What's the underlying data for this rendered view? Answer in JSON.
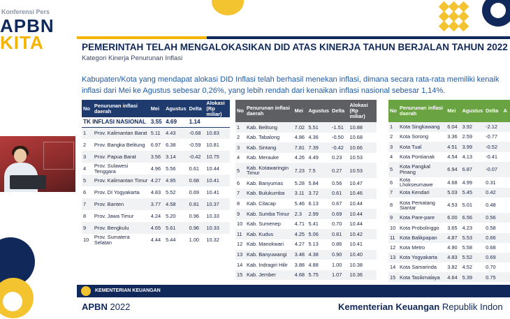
{
  "brand": {
    "conference": "Konferensi Pers",
    "apbn": "APBN",
    "kita": "KITA"
  },
  "slide": {
    "title": "PEMERINTAH TELAH MENGALOKASIKAN DID ATAS KINERJA TAHUN BERJALAN TAHUN 2022",
    "subtitle": "Kategori Kinerja Penurunan Inflasi",
    "intro_line1": "Kabupaten/Kota yang mendapat alokasi DID Inflasi telah berhasil menekan inflasi, dimana secara rata-rata memiliki kenaik",
    "intro_line2": "inflasi dari Mei ke Agustus sebesar 0,26%, yang lebih rendah dari kenaikan inflasi nasional sebesar 1,14%."
  },
  "province_table": {
    "headers": {
      "no": "No",
      "name": "Penurunan inflasi daerah",
      "mei": "Mei",
      "agustus": "Agustus",
      "delta": "Delta",
      "alokasi": "Alokasi (Rp miliar)"
    },
    "national": {
      "label": "TK INFLASI NASIONAL",
      "mei": "3.55",
      "agustus": "4.69",
      "delta": "1.14"
    },
    "rows": [
      {
        "no": "1",
        "name": "Prov. Kalimantan Barat",
        "mei": "5.11",
        "agustus": "4.43",
        "delta": "-0.68",
        "alokasi": "10.83"
      },
      {
        "no": "2",
        "name": "Prov. Bangka Belitung",
        "mei": "6.97",
        "agustus": "6.38",
        "delta": "-0.59",
        "alokasi": "10.81"
      },
      {
        "no": "3",
        "name": "Prov. Papua Barat",
        "mei": "3.56",
        "agustus": "3.14",
        "delta": "-0.42",
        "alokasi": "10.75"
      },
      {
        "no": "4",
        "name": "Prov. Sulawesi Tenggara",
        "mei": "4.96",
        "agustus": "5.56",
        "delta": "0.61",
        "alokasi": "10.44"
      },
      {
        "no": "5",
        "name": "Prov. Kalimantan Timur",
        "mei": "4.27",
        "agustus": "4.95",
        "delta": "0.68",
        "alokasi": "10.41"
      },
      {
        "no": "6",
        "name": "Prov. DI Yogyakarta",
        "mei": "4.83",
        "agustus": "5.52",
        "delta": "0.69",
        "alokasi": "10.41"
      },
      {
        "no": "7",
        "name": "Prov. Banten",
        "mei": "3.77",
        "agustus": "4.58",
        "delta": "0.81",
        "alokasi": "10.37"
      },
      {
        "no": "8",
        "name": "Prov. Jawa Timur",
        "mei": "4.24",
        "agustus": "5.20",
        "delta": "0.96",
        "alokasi": "10.33"
      },
      {
        "no": "9",
        "name": "Prov. Bengkulu",
        "mei": "4.65",
        "agustus": "5.61",
        "delta": "0.96",
        "alokasi": "10.33"
      },
      {
        "no": "10",
        "name": "Prov. Sumatera Selatan",
        "mei": "4.44",
        "agustus": "5.44",
        "delta": "1.00",
        "alokasi": "10.32"
      }
    ]
  },
  "kabupaten_table": {
    "headers": {
      "no": "No",
      "name": "Penurunan inflasi daerah",
      "mei": "Mei",
      "agustus": "Agustus",
      "delta": "Delta",
      "alokasi": "Alokasi (Rp miliar)"
    },
    "rows": [
      {
        "no": "1",
        "name": "Kab. Belitung",
        "mei": "7.02",
        "agustus": "5.51",
        "delta": "-1.51",
        "alokasi": "10.88"
      },
      {
        "no": "2",
        "name": "Kab. Tabalong",
        "mei": "4.86",
        "agustus": "4.36",
        "delta": "-0.50",
        "alokasi": "10.68"
      },
      {
        "no": "3",
        "name": "Kab. Sintang",
        "mei": "7.81",
        "agustus": "7.39",
        "delta": "-0.42",
        "alokasi": "10.66"
      },
      {
        "no": "4",
        "name": "Kab. Merauke",
        "mei": "4.26",
        "agustus": "4.49",
        "delta": "0.23",
        "alokasi": "10.53"
      },
      {
        "no": "5",
        "name": "Kab. Kotawaringin Timur",
        "mei": "7.23",
        "agustus": "7.5",
        "delta": "0.27",
        "alokasi": "10.53"
      },
      {
        "no": "6",
        "name": "Kab. Banyumas",
        "mei": "5.28",
        "agustus": "5.84",
        "delta": "0.56",
        "alokasi": "10.47"
      },
      {
        "no": "7",
        "name": "Kab. Bulukumba",
        "mei": "3.11",
        "agustus": "3.72",
        "delta": "0.61",
        "alokasi": "10.46"
      },
      {
        "no": "8",
        "name": "Kab. Cilacap",
        "mei": "5.46",
        "agustus": "6.13",
        "delta": "0.67",
        "alokasi": "10.44"
      },
      {
        "no": "9",
        "name": "Kab. Sumba Timur",
        "mei": "2.3",
        "agustus": "2.99",
        "delta": "0.69",
        "alokasi": "10.44"
      },
      {
        "no": "10",
        "name": "Kab. Sumenep",
        "mei": "4.71",
        "agustus": "5.41",
        "delta": "0.70",
        "alokasi": "10.44"
      },
      {
        "no": "11",
        "name": "Kab. Kudus",
        "mei": "4.25",
        "agustus": "5.06",
        "delta": "0.81",
        "alokasi": "10.42"
      },
      {
        "no": "12",
        "name": "Kab. Manokwari",
        "mei": "4.27",
        "agustus": "5.13",
        "delta": "0.86",
        "alokasi": "10.41"
      },
      {
        "no": "13",
        "name": "Kab. Banyuwangi",
        "mei": "3.48",
        "agustus": "4.38",
        "delta": "0.90",
        "alokasi": "10.40"
      },
      {
        "no": "14",
        "name": "Kab. Indragiri Hilir",
        "mei": "3.88",
        "agustus": "4.88",
        "delta": "1.00",
        "alokasi": "10.38"
      },
      {
        "no": "15",
        "name": "Kab. Jember",
        "mei": "4.68",
        "agustus": "5.75",
        "delta": "1.07",
        "alokasi": "10.36"
      }
    ]
  },
  "kota_table": {
    "headers": {
      "no": "No",
      "name": "Penurunan inflasi daerah",
      "mei": "Mei",
      "agustus": "Agustus",
      "delta": "Delta",
      "alokasi": "A"
    },
    "rows": [
      {
        "no": "1",
        "name": "Kota Singkawang",
        "mei": "6.04",
        "agustus": "3.92",
        "delta": "-2.12"
      },
      {
        "no": "2",
        "name": "Kota Sorong",
        "mei": "3.36",
        "agustus": "2.59",
        "delta": "-0.77"
      },
      {
        "no": "3",
        "name": "Kota Tual",
        "mei": "4.51",
        "agustus": "3.99",
        "delta": "-0.52"
      },
      {
        "no": "4",
        "name": "Kota Pontianak",
        "mei": "4.54",
        "agustus": "4.13",
        "delta": "-0.41"
      },
      {
        "no": "5",
        "name": "Kota Pangkal Pinang",
        "mei": "6.94",
        "agustus": "6.87",
        "delta": "-0.07"
      },
      {
        "no": "6",
        "name": "Kota Lhokseumawe",
        "mei": "4.68",
        "agustus": "4.99",
        "delta": "0.31"
      },
      {
        "no": "7",
        "name": "Kota Kendari",
        "mei": "5.03",
        "agustus": "5.45",
        "delta": "0.42"
      },
      {
        "no": "8",
        "name": "Kota Pematang Siantar",
        "mei": "4.53",
        "agustus": "5.01",
        "delta": "0.48"
      },
      {
        "no": "9",
        "name": "Kota Pare-pare",
        "mei": "6.00",
        "agustus": "6.56",
        "delta": "0.56"
      },
      {
        "no": "10",
        "name": "Kota Probolinggo",
        "mei": "3.65",
        "agustus": "4.23",
        "delta": "0.58"
      },
      {
        "no": "11",
        "name": "Kota Balikpapan",
        "mei": "4.87",
        "agustus": "5.53",
        "delta": "0.66"
      },
      {
        "no": "12",
        "name": "Kota Metro",
        "mei": "4.90",
        "agustus": "5.58",
        "delta": "0.68"
      },
      {
        "no": "13",
        "name": "Kota Yogyakarta",
        "mei": "4.83",
        "agustus": "5.52",
        "delta": "0.69"
      },
      {
        "no": "14",
        "name": "Kota Samarinda",
        "mei": "3.82",
        "agustus": "4.52",
        "delta": "0.70"
      },
      {
        "no": "15",
        "name": "Kota Tasikmalaya",
        "mei": "4.64",
        "agustus": "5.39",
        "delta": "0.75"
      }
    ]
  },
  "footer": {
    "ministry_band": "KEMENTERIAN KEUANGAN",
    "apbn": "APBN",
    "year": "2022",
    "ministry_bold": "Kementerian Keuangan",
    "ministry_rest": "Republik Indon"
  },
  "colors": {
    "navy": "#10285a",
    "gold": "#f4b400",
    "province_header": "#1f3b6e",
    "kabupaten_header": "#5d5f63",
    "kota_header": "#6aa341",
    "intro_text": "#1d5aa8"
  }
}
